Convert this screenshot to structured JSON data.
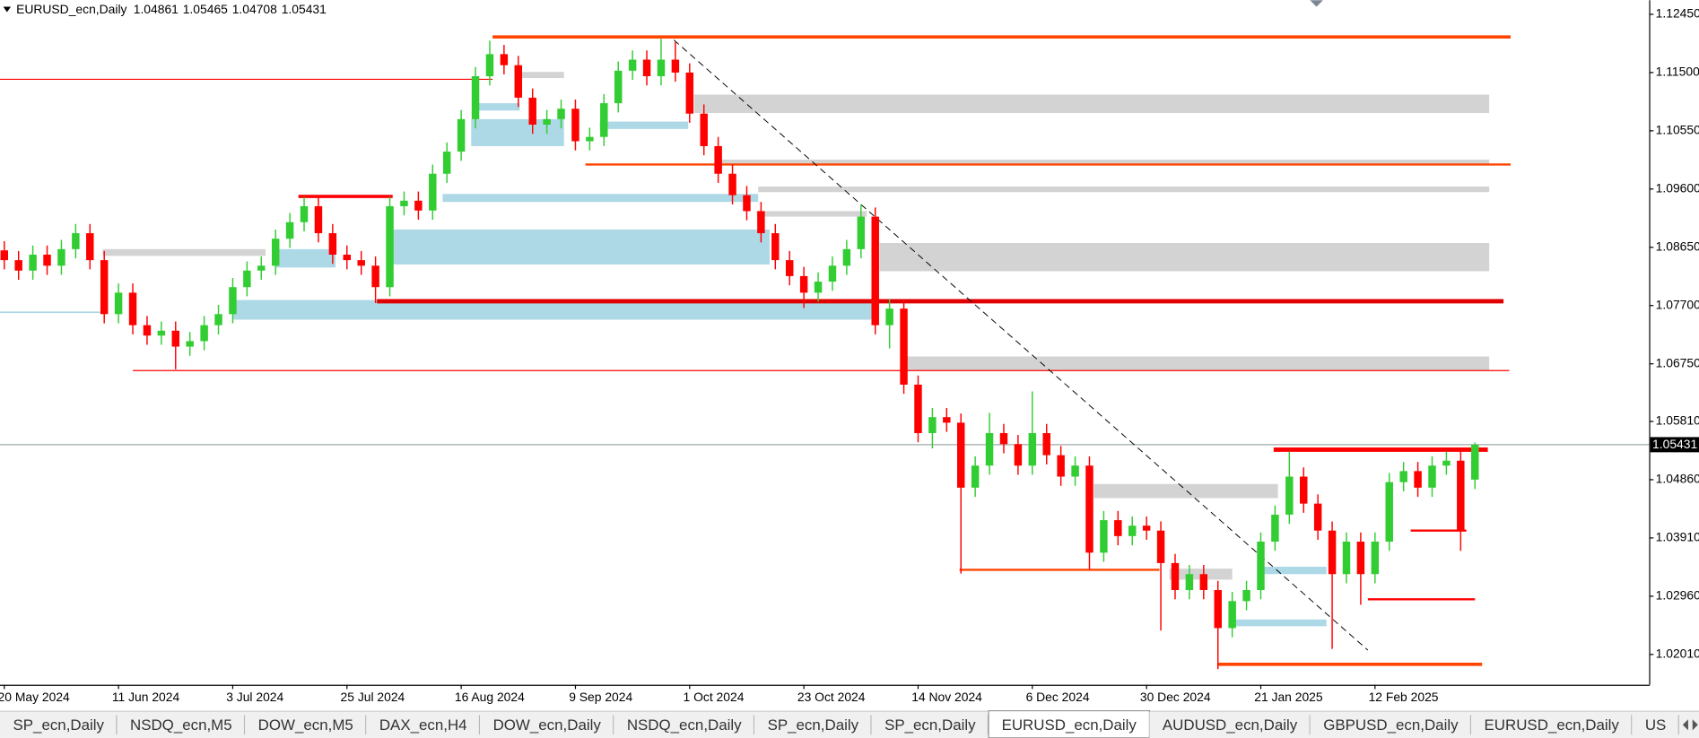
{
  "chart_data": {
    "type": "candlestick",
    "title": "EURUSD_ecn,Daily",
    "up_color": "#32cd32",
    "down_color": "#ff0000",
    "xlim": [
      -0.3,
      115.2
    ],
    "ylim": [
      1.01516,
      1.1268
    ],
    "yticks": [
      {
        "value": 1.1245,
        "label": "1.12450"
      },
      {
        "value": 1.115,
        "label": "1.11500"
      },
      {
        "value": 1.1055,
        "label": "1.10550"
      },
      {
        "value": 1.096,
        "label": "1.09600"
      },
      {
        "value": 1.0865,
        "label": "1.08650"
      },
      {
        "value": 1.077,
        "label": "1.07700"
      },
      {
        "value": 1.0675,
        "label": "1.06750"
      },
      {
        "value": 1.0581,
        "label": "1.05810"
      },
      {
        "value": 1.0486,
        "label": "1.04860"
      },
      {
        "value": 1.0391,
        "label": "1.03910"
      },
      {
        "value": 1.0296,
        "label": "1.02960"
      },
      {
        "value": 1.0201,
        "label": "1.02010"
      }
    ],
    "xticks": [
      {
        "value": 0,
        "label": "20 May 2024"
      },
      {
        "value": 8,
        "label": "11 Jun 2024"
      },
      {
        "value": 16,
        "label": "3 Jul 2024"
      },
      {
        "value": 24,
        "label": "25 Jul 2024"
      },
      {
        "value": 32,
        "label": "16 Aug 2024"
      },
      {
        "value": 40,
        "label": "9 Sep 2024"
      },
      {
        "value": 48,
        "label": "1 Oct 2024"
      },
      {
        "value": 56,
        "label": "23 Oct 2024"
      },
      {
        "value": 64,
        "label": "14 Nov 2024"
      },
      {
        "value": 72,
        "label": "6 Dec 2024"
      },
      {
        "value": 80,
        "label": "30 Dec 2024"
      },
      {
        "value": 88,
        "label": "21 Jan 2025"
      },
      {
        "value": 96,
        "label": "12 Feb 2025"
      }
    ],
    "open": [
      1.086,
      1.0844,
      1.0827,
      1.0853,
      1.0835,
      1.0862,
      1.0888,
      1.0844,
      1.0756,
      1.0791,
      1.0738,
      1.0721,
      1.0729,
      1.0703,
      1.0712,
      1.0738,
      1.0756,
      1.08,
      1.0827,
      1.0835,
      1.0879,
      1.0906,
      1.0932,
      1.0888,
      1.0853,
      1.0844,
      1.0835,
      1.08,
      1.0932,
      1.0941,
      1.0925,
      1.0985,
      1.1021,
      1.1074,
      1.1144,
      1.118,
      1.1162,
      1.1109,
      1.1065,
      1.1074,
      1.1091,
      1.1038,
      1.1045,
      1.11,
      1.1153,
      1.1171,
      1.1144,
      1.1171,
      1.115,
      1.1083,
      1.103,
      1.0985,
      1.095,
      1.0924,
      1.0888,
      1.0844,
      1.0818,
      1.0791,
      1.0809,
      1.0835,
      1.0862,
      1.0915,
      1.0738,
      1.0765,
      1.0641,
      1.0562,
      1.0588,
      1.0579,
      1.0473,
      1.0509,
      1.0562,
      1.0544,
      1.0509,
      1.0562,
      1.0526,
      1.0491,
      1.0509,
      1.0367,
      1.042,
      1.0394,
      1.0411,
      1.0403,
      1.035,
      1.0306,
      1.0332,
      1.0306,
      1.0244,
      1.0288,
      1.0306,
      1.0385,
      1.0429,
      1.0491,
      1.0447,
      1.0403,
      1.0332,
      1.0385,
      1.0332,
      1.0385,
      1.0482,
      1.05,
      1.0473,
      1.0509,
      1.0517,
      1.04861
    ],
    "high": [
      1.0875,
      1.0859,
      1.0868,
      1.0868,
      1.0877,
      1.0903,
      1.0903,
      1.0859,
      1.0806,
      1.0806,
      1.0753,
      1.0744,
      1.0744,
      1.0727,
      1.0753,
      1.0771,
      1.0815,
      1.0842,
      1.085,
      1.0894,
      1.0921,
      1.0947,
      1.0947,
      1.0903,
      1.0868,
      1.0859,
      1.085,
      1.0947,
      1.0956,
      1.0956,
      1.1,
      1.1036,
      1.1089,
      1.1159,
      1.1202,
      1.1195,
      1.1177,
      1.1124,
      1.1089,
      1.1106,
      1.1106,
      1.106,
      1.1115,
      1.1168,
      1.1186,
      1.1186,
      1.1205,
      1.12,
      1.1165,
      1.1098,
      1.1045,
      1.1,
      1.0965,
      1.0939,
      1.0903,
      1.0859,
      1.0833,
      1.0824,
      1.085,
      1.0877,
      1.0935,
      1.093,
      1.078,
      1.078,
      1.0656,
      1.0603,
      1.0603,
      1.0594,
      1.0524,
      1.0595,
      1.0577,
      1.0559,
      1.063,
      1.0577,
      1.0541,
      1.0524,
      1.0524,
      1.0435,
      1.0435,
      1.0426,
      1.0426,
      1.0418,
      1.0365,
      1.0347,
      1.0347,
      1.0321,
      1.0303,
      1.0321,
      1.04,
      1.0444,
      1.0532,
      1.0506,
      1.0462,
      1.0418,
      1.04,
      1.04,
      1.04,
      1.0497,
      1.0515,
      1.0515,
      1.0524,
      1.0532,
      1.0532,
      1.05465
    ],
    "low": [
      1.0829,
      1.0812,
      1.0812,
      1.082,
      1.082,
      1.0847,
      1.0829,
      1.0741,
      1.0741,
      1.0723,
      1.0706,
      1.0706,
      1.0666,
      1.0688,
      1.0697,
      1.0723,
      1.0741,
      1.0785,
      1.0812,
      1.082,
      1.0864,
      1.0891,
      1.0873,
      1.0838,
      1.0829,
      1.082,
      1.0774,
      1.0785,
      1.0917,
      1.091,
      1.091,
      1.097,
      1.1006,
      1.1059,
      1.1129,
      1.1147,
      1.1094,
      1.105,
      1.105,
      1.1059,
      1.1023,
      1.1023,
      1.103,
      1.1085,
      1.1138,
      1.1129,
      1.1129,
      1.1135,
      1.1068,
      1.1015,
      1.097,
      1.0935,
      1.0909,
      1.0873,
      1.0829,
      1.0803,
      1.0766,
      1.0776,
      1.0794,
      1.082,
      1.0847,
      1.0723,
      1.07,
      1.0626,
      1.0547,
      1.0537,
      1.0564,
      1.0333,
      1.0458,
      1.0494,
      1.0529,
      1.0494,
      1.0494,
      1.0511,
      1.0476,
      1.0476,
      1.034,
      1.0352,
      1.0379,
      1.0379,
      1.0388,
      1.024,
      1.0291,
      1.0291,
      1.0291,
      1.0177,
      1.0229,
      1.0273,
      1.0291,
      1.037,
      1.0414,
      1.0432,
      1.0388,
      1.021,
      1.0317,
      1.0282,
      1.0317,
      1.037,
      1.0467,
      1.0458,
      1.0458,
      1.0494,
      1.037,
      1.04708
    ],
    "close": [
      1.0844,
      1.0827,
      1.0853,
      1.0835,
      1.0862,
      1.0888,
      1.0844,
      1.0756,
      1.0791,
      1.0738,
      1.0721,
      1.0729,
      1.0703,
      1.0712,
      1.0738,
      1.0756,
      1.08,
      1.0827,
      1.0835,
      1.0879,
      1.0906,
      1.0932,
      1.0888,
      1.0853,
      1.0844,
      1.0835,
      1.08,
      1.0932,
      1.0941,
      1.0925,
      1.0985,
      1.1021,
      1.1074,
      1.1144,
      1.118,
      1.1162,
      1.1109,
      1.1065,
      1.1074,
      1.1091,
      1.1038,
      1.1045,
      1.11,
      1.1153,
      1.1171,
      1.1144,
      1.1171,
      1.115,
      1.1083,
      1.103,
      1.0985,
      1.095,
      1.0924,
      1.0888,
      1.0844,
      1.0818,
      1.0791,
      1.0809,
      1.0835,
      1.0862,
      1.0915,
      1.0738,
      1.0765,
      1.0641,
      1.0562,
      1.0588,
      1.0579,
      1.0473,
      1.0509,
      1.0562,
      1.0544,
      1.0509,
      1.0562,
      1.0526,
      1.0491,
      1.0509,
      1.0367,
      1.042,
      1.0394,
      1.0411,
      1.0403,
      1.035,
      1.0306,
      1.0332,
      1.0306,
      1.0244,
      1.0288,
      1.0306,
      1.0385,
      1.0429,
      1.0491,
      1.0447,
      1.0403,
      1.0332,
      1.0385,
      1.0332,
      1.0385,
      1.0482,
      1.05,
      1.0473,
      1.0509,
      1.0517,
      1.0403,
      1.05431
    ],
    "current_price_color": "#a0a8a8",
    "levels": [
      {
        "price": 1.1208,
        "from": 34.2,
        "to": 105.5,
        "color": "#ff4500",
        "width": 3
      },
      {
        "price": 1.1139,
        "from": -0.3,
        "to": 34.2,
        "color": "#ff0000",
        "width": 1
      },
      {
        "price": 1.1,
        "from": 40.7,
        "to": 105.5,
        "color": "#ff4500",
        "width": 2
      },
      {
        "price": 1.0948,
        "from": 20.6,
        "to": 27.2,
        "color": "#ff0000",
        "width": 3
      },
      {
        "price": 1.0777,
        "from": 26.1,
        "to": 105,
        "color": "#e00000",
        "width": 4
      },
      {
        "price": 1.0664,
        "from": 9,
        "to": 105.4,
        "color": "#ff0000",
        "width": 1
      },
      {
        "price": 1.0339,
        "from": 66.9,
        "to": 80.9,
        "color": "#ff4500",
        "width": 2
      },
      {
        "price": 1.0535,
        "from": 88.9,
        "to": 103.9,
        "color": "#ff0000",
        "width": 4
      },
      {
        "price": 1.0403,
        "from": 98.5,
        "to": 102.4,
        "color": "#ff0000",
        "width": 2
      },
      {
        "price": 1.0291,
        "from": 95.5,
        "to": 103,
        "color": "#ff0000",
        "width": 2
      },
      {
        "price": 1.0185,
        "from": 85,
        "to": 103.5,
        "color": "#ff4500",
        "width": 3
      },
      {
        "price": 1.0759,
        "from": -0.3,
        "to": 6.9,
        "color": "#add8e6",
        "width": 1.5
      }
    ],
    "zones": [
      {
        "top": 1.1114,
        "bottom": 1.1084,
        "from": 48.3,
        "to": 104,
        "color": "#d3d3d3"
      },
      {
        "top": 1.1008,
        "bottom": 1.1,
        "from": 49.8,
        "to": 104,
        "color": "#d3d3d3"
      },
      {
        "top": 1.0964,
        "bottom": 1.0955,
        "from": 52.8,
        "to": 104,
        "color": "#d3d3d3"
      },
      {
        "top": 1.0872,
        "bottom": 1.0826,
        "from": 61.3,
        "to": 104,
        "color": "#d3d3d3"
      },
      {
        "top": 1.0687,
        "bottom": 1.0664,
        "from": 62.8,
        "to": 104,
        "color": "#d3d3d3"
      },
      {
        "top": 1.0479,
        "bottom": 1.0456,
        "from": 76.3,
        "to": 89.2,
        "color": "#d3d3d3"
      },
      {
        "top": 1.0862,
        "bottom": 1.0851,
        "from": 6.9,
        "to": 18.3,
        "color": "#d3d3d3"
      },
      {
        "top": 1.1151,
        "bottom": 1.1141,
        "from": 36.1,
        "to": 39.2,
        "color": "#d3d3d3"
      },
      {
        "top": 1.0924,
        "bottom": 1.0915,
        "from": 52.7,
        "to": 60.4,
        "color": "#d3d3d3"
      },
      {
        "top": 1.0341,
        "bottom": 1.0323,
        "from": 81.6,
        "to": 86,
        "color": "#d3d3d3"
      },
      {
        "top": 1.0894,
        "bottom": 1.0837,
        "from": 27.2,
        "to": 53.6,
        "color": "#add8e6"
      },
      {
        "top": 1.0779,
        "bottom": 1.0747,
        "from": 16,
        "to": 60.8,
        "color": "#add8e6"
      },
      {
        "top": 1.0862,
        "bottom": 1.0832,
        "from": 19,
        "to": 23.2,
        "color": "#add8e6"
      },
      {
        "top": 1.0952,
        "bottom": 1.0939,
        "from": 30.7,
        "to": 52.8,
        "color": "#add8e6"
      },
      {
        "top": 1.1074,
        "bottom": 1.103,
        "from": 32.7,
        "to": 39.2,
        "color": "#add8e6"
      },
      {
        "top": 1.11,
        "bottom": 1.1088,
        "from": 33.1,
        "to": 36.1,
        "color": "#add8e6"
      },
      {
        "top": 1.107,
        "bottom": 1.1058,
        "from": 41.7,
        "to": 47.9,
        "color": "#add8e6"
      },
      {
        "top": 1.0344,
        "bottom": 1.0332,
        "from": 87.9,
        "to": 92.6,
        "color": "#add8e6"
      },
      {
        "top": 1.0258,
        "bottom": 1.0247,
        "from": 85.8,
        "to": 92.6,
        "color": "#add8e6"
      }
    ],
    "trendline": {
      "from": [
        46.9,
        1.1203
      ],
      "to": [
        95.5,
        1.0208
      ],
      "color": "#000000"
    }
  },
  "tabs": {
    "items": [
      "SP_ecn,Daily",
      "NSDQ_ecn,M5",
      "DOW_ecn,M5",
      "DAX_ecn,H4",
      "DOW_ecn,Daily",
      "NSDQ_ecn,Daily",
      "SP_ecn,Daily",
      "SP_ecn,Daily",
      "EURUSD_ecn,Daily",
      "AUDUSD_ecn,Daily",
      "GBPUSD_ecn,Daily",
      "EURUSD_ecn,Daily",
      "US"
    ],
    "active": 8
  }
}
